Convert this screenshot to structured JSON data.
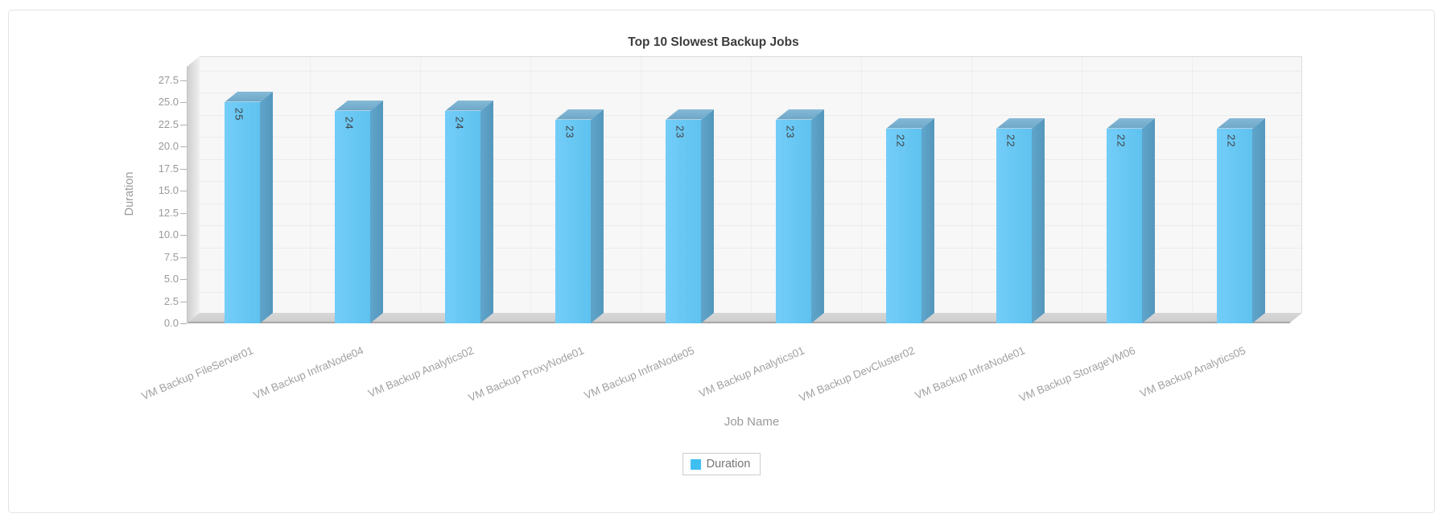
{
  "chart_data": {
    "type": "bar",
    "style": "3d-column",
    "title": "Top 10 Slowest Backup Jobs",
    "xlabel": "Job Name",
    "ylabel": "Duration",
    "categories": [
      "VM Backup FileServer01",
      "VM Backup InfraNode04",
      "VM Backup Analytics02",
      "VM Backup ProxyNode01",
      "VM Backup InfraNode05",
      "VM Backup Analytics01",
      "VM Backup DevCluster02",
      "VM Backup InfraNode01",
      "VM Backup StorageVM06",
      "VM Backup Analytics05"
    ],
    "series": [
      {
        "name": "Duration",
        "values": [
          25,
          24,
          24,
          23,
          23,
          23,
          22,
          22,
          22,
          22
        ]
      }
    ],
    "ylim": [
      0,
      27.5
    ],
    "ytick_step": 2.5,
    "ytick_labels": [
      "0.0",
      "2.5",
      "5.0",
      "7.5",
      "10.0",
      "12.5",
      "15.0",
      "17.5",
      "20.0",
      "22.5",
      "25.0",
      "27.5"
    ],
    "grid": true,
    "legend": {
      "position": "bottom",
      "items": [
        {
          "label": "Duration",
          "color": "#3fbef2"
        }
      ]
    },
    "colors": {
      "bar_front": "#68c8f4",
      "bar_side": "#5c9fc5",
      "bar_top": "#7ab1d1",
      "value_label": "#3f3f3f",
      "axis_text": "#999999",
      "title_text": "#3d3d3d"
    }
  }
}
